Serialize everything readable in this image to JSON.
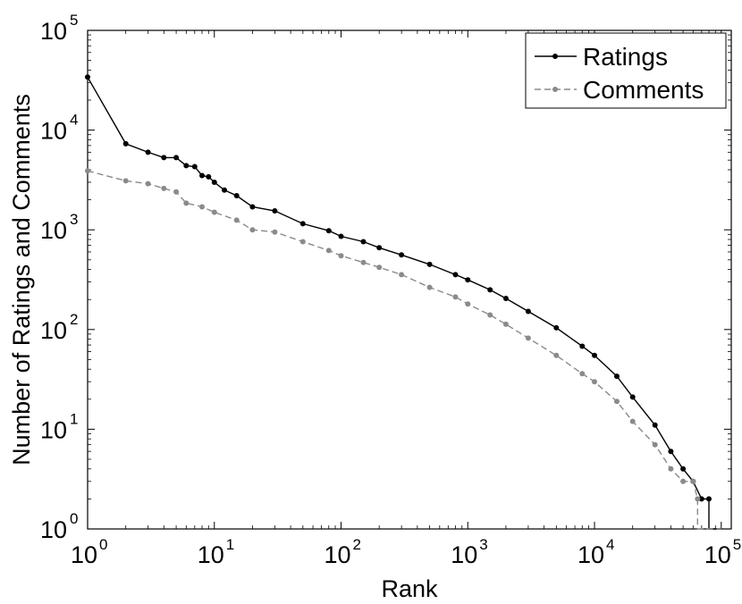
{
  "chart_data": {
    "type": "line",
    "title": "",
    "xlabel": "Rank",
    "ylabel": "Number of Ratings and Comments",
    "x_scale": "log",
    "y_scale": "log",
    "xlim": [
      1,
      120000
    ],
    "ylim": [
      1,
      100000
    ],
    "grid": false,
    "legend_position": "top-right",
    "x_ticks": [
      {
        "base": "10",
        "exp": "0",
        "value": 1
      },
      {
        "base": "10",
        "exp": "1",
        "value": 10
      },
      {
        "base": "10",
        "exp": "2",
        "value": 100
      },
      {
        "base": "10",
        "exp": "3",
        "value": 1000
      },
      {
        "base": "10",
        "exp": "4",
        "value": 10000
      },
      {
        "base": "10",
        "exp": "5",
        "value": 100000
      }
    ],
    "y_ticks": [
      {
        "base": "10",
        "exp": "0",
        "value": 1
      },
      {
        "base": "10",
        "exp": "1",
        "value": 10
      },
      {
        "base": "10",
        "exp": "2",
        "value": 100
      },
      {
        "base": "10",
        "exp": "3",
        "value": 1000
      },
      {
        "base": "10",
        "exp": "4",
        "value": 10000
      },
      {
        "base": "10",
        "exp": "5",
        "value": 100000
      }
    ],
    "series": [
      {
        "name": "Ratings",
        "color": "#000000",
        "style": "solid",
        "points": [
          [
            1,
            34000
          ],
          [
            2,
            7300
          ],
          [
            3,
            6000
          ],
          [
            4,
            5300
          ],
          [
            5,
            5300
          ],
          [
            6,
            4400
          ],
          [
            7,
            4300
          ],
          [
            8,
            3500
          ],
          [
            9,
            3400
          ],
          [
            10,
            3000
          ],
          [
            12,
            2500
          ],
          [
            15,
            2200
          ],
          [
            20,
            1700
          ],
          [
            30,
            1550
          ],
          [
            50,
            1150
          ],
          [
            80,
            980
          ],
          [
            100,
            860
          ],
          [
            150,
            760
          ],
          [
            200,
            660
          ],
          [
            300,
            560
          ],
          [
            500,
            450
          ],
          [
            800,
            355
          ],
          [
            1000,
            315
          ],
          [
            1500,
            250
          ],
          [
            2000,
            205
          ],
          [
            3000,
            152
          ],
          [
            5000,
            104
          ],
          [
            8000,
            68
          ],
          [
            10000,
            55
          ],
          [
            15000,
            34
          ],
          [
            20000,
            21
          ],
          [
            30000,
            11
          ],
          [
            40000,
            6
          ],
          [
            50000,
            4
          ],
          [
            60000,
            3
          ],
          [
            70000,
            2
          ],
          [
            80000,
            2
          ],
          [
            80000,
            1
          ],
          [
            100000,
            1
          ]
        ]
      },
      {
        "name": "Comments",
        "color": "#8a8a8a",
        "style": "dashed",
        "points": [
          [
            1,
            3900
          ],
          [
            2,
            3100
          ],
          [
            3,
            2900
          ],
          [
            4,
            2600
          ],
          [
            5,
            2400
          ],
          [
            6,
            1850
          ],
          [
            8,
            1700
          ],
          [
            10,
            1500
          ],
          [
            15,
            1250
          ],
          [
            20,
            1000
          ],
          [
            30,
            950
          ],
          [
            50,
            760
          ],
          [
            80,
            620
          ],
          [
            100,
            550
          ],
          [
            150,
            470
          ],
          [
            200,
            420
          ],
          [
            300,
            355
          ],
          [
            500,
            265
          ],
          [
            800,
            212
          ],
          [
            1000,
            180
          ],
          [
            1500,
            140
          ],
          [
            2000,
            113
          ],
          [
            3000,
            82
          ],
          [
            5000,
            55
          ],
          [
            8000,
            36
          ],
          [
            10000,
            30
          ],
          [
            15000,
            19
          ],
          [
            20000,
            12
          ],
          [
            30000,
            7
          ],
          [
            40000,
            4
          ],
          [
            50000,
            3
          ],
          [
            60000,
            3
          ],
          [
            65000,
            2
          ],
          [
            65000,
            1
          ],
          [
            100000,
            1
          ]
        ]
      }
    ]
  }
}
